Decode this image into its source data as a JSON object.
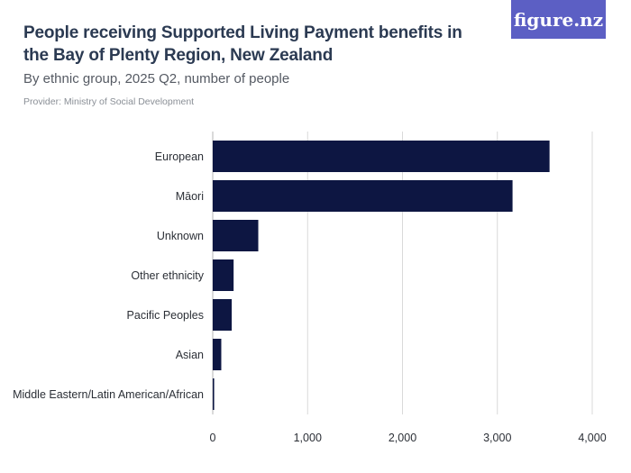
{
  "header": {
    "title": "People receiving Supported Living Payment benefits in the Bay of Plenty Region, New Zealand",
    "subtitle": "By ethnic group, 2025 Q2, number of people",
    "provider": "Provider: Ministry of Social Development"
  },
  "logo": {
    "text": "figure.nz"
  },
  "colors": {
    "bar": "#0d1642",
    "grid": "#d9d9d9",
    "logo_bg": "#5c5fc4"
  },
  "chart_data": {
    "type": "bar",
    "orientation": "horizontal",
    "categories": [
      "European",
      "Māori",
      "Unknown",
      "Other ethnicity",
      "Pacific Peoples",
      "Asian",
      "Middle Eastern/Latin American/African"
    ],
    "values": [
      3550,
      3160,
      480,
      220,
      200,
      90,
      15
    ],
    "xlim": [
      0,
      4000
    ],
    "xticks": [
      0,
      1000,
      2000,
      3000,
      4000
    ],
    "xtick_labels": [
      "0",
      "1,000",
      "2,000",
      "3,000",
      "4,000"
    ],
    "grid": true
  }
}
